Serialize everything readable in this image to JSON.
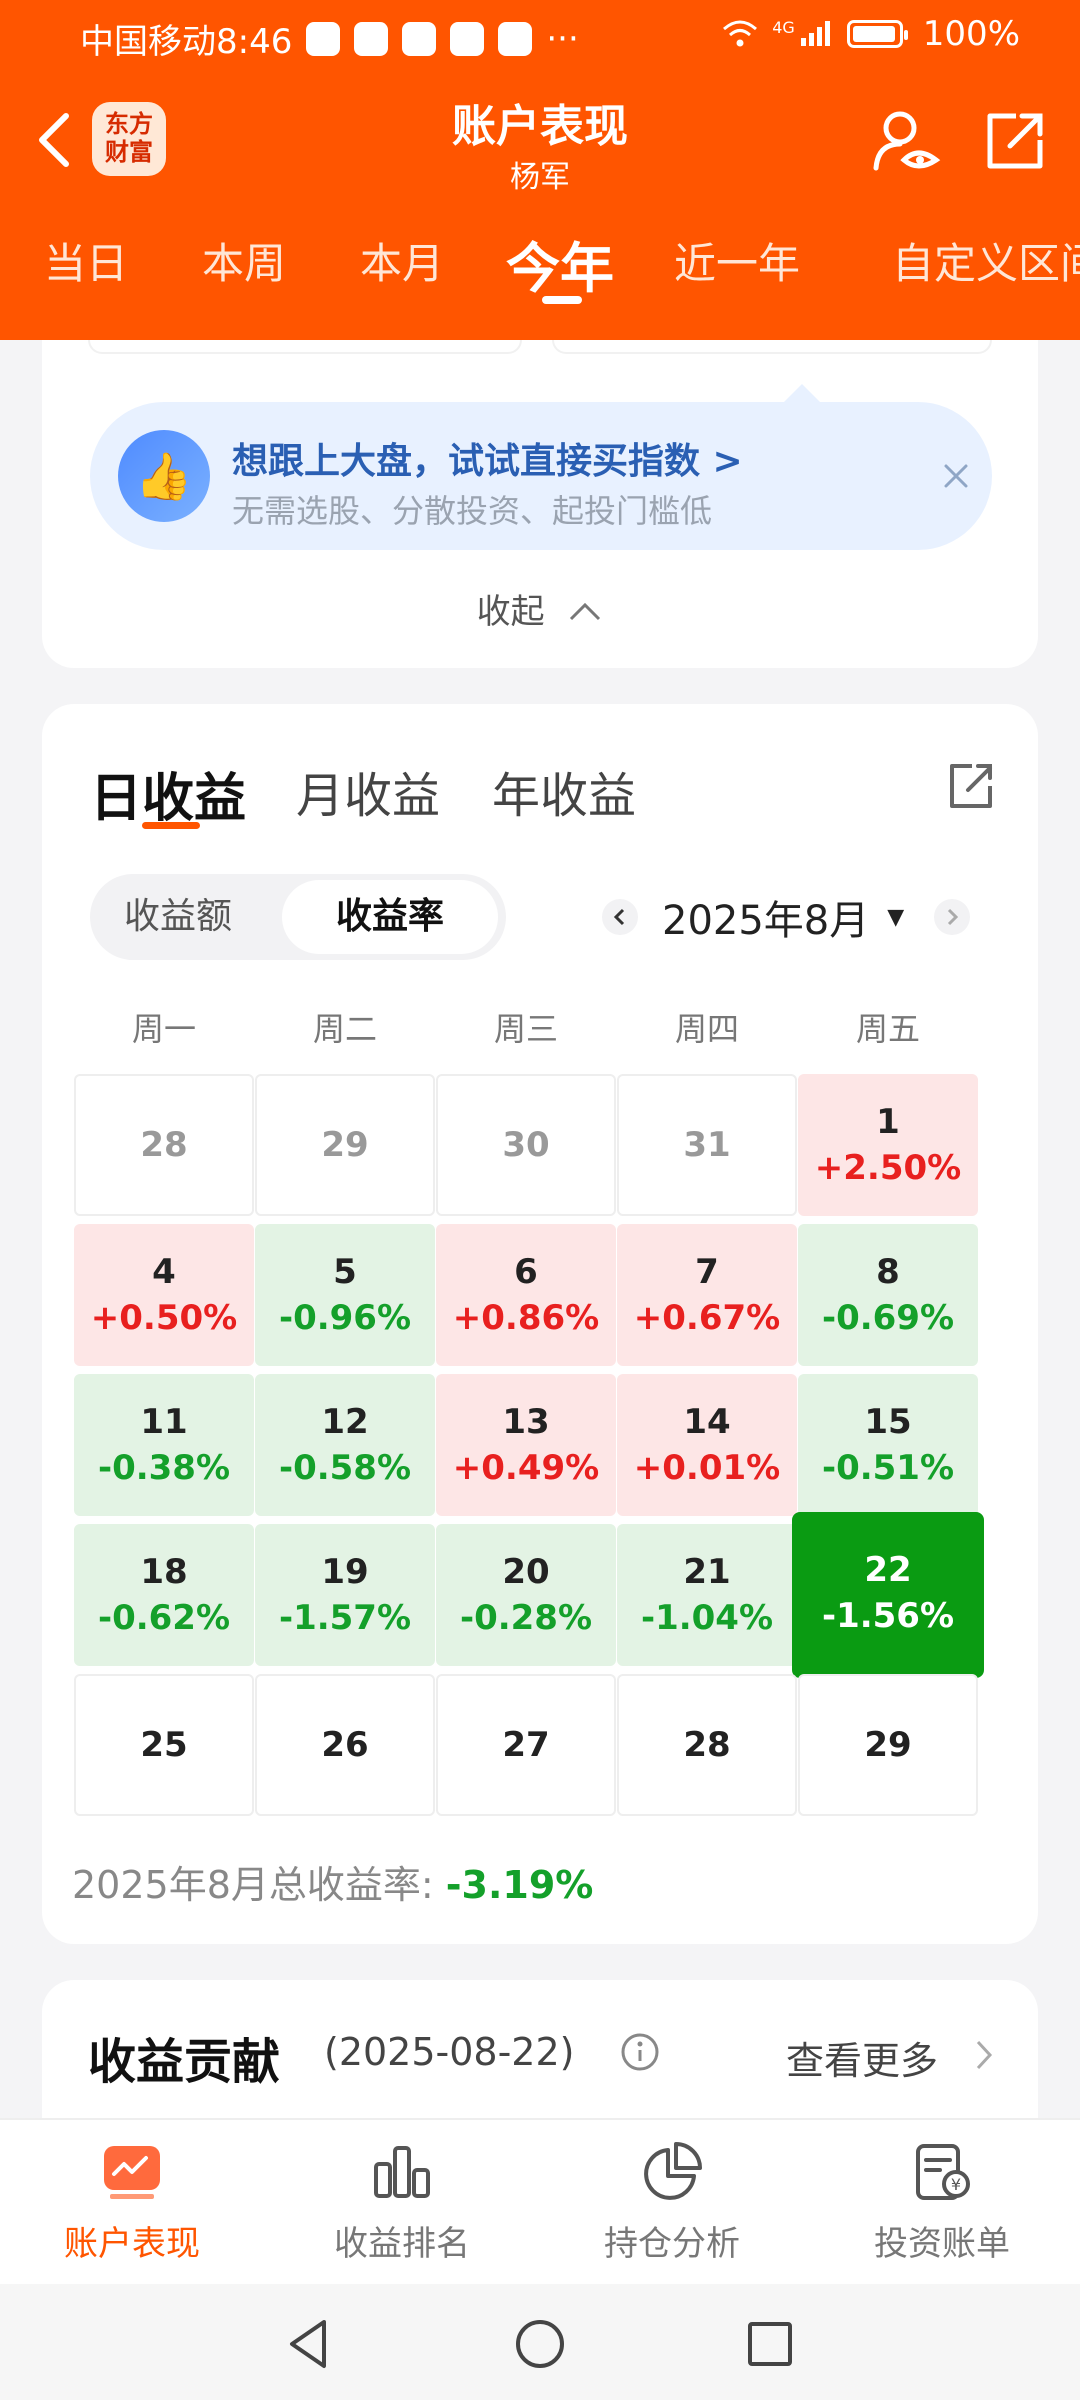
{
  "status": {
    "carrier_time": "中国移动8:46",
    "more": "···",
    "net": "4G",
    "battery": "100%"
  },
  "header": {
    "logo": "东方\n财富",
    "title": "账户表现",
    "subtitle": "杨军"
  },
  "period_tabs": [
    "当日",
    "本周",
    "本月",
    "今年",
    "近一年",
    "自定义区间"
  ],
  "promo": {
    "title": "想跟上大盘，试试直接买指数 >",
    "subtitle": "无需选股、分散投资、起投门槛低",
    "collapse": "收起"
  },
  "calendar_card": {
    "tabs": [
      "日收益",
      "月收益",
      "年收益"
    ],
    "segment": [
      "收益额",
      "收益率"
    ],
    "month": "2025年8月",
    "weekdays": [
      "周一",
      "周二",
      "周三",
      "周四",
      "周五"
    ],
    "cells": [
      {
        "day": "28",
        "value": "",
        "tone": "grey"
      },
      {
        "day": "29",
        "value": "",
        "tone": "grey"
      },
      {
        "day": "30",
        "value": "",
        "tone": "grey"
      },
      {
        "day": "31",
        "value": "",
        "tone": "grey"
      },
      {
        "day": "1",
        "value": "+2.50%",
        "tone": "red"
      },
      {
        "day": "4",
        "value": "+0.50%",
        "tone": "red"
      },
      {
        "day": "5",
        "value": "-0.96%",
        "tone": "green"
      },
      {
        "day": "6",
        "value": "+0.86%",
        "tone": "red"
      },
      {
        "day": "7",
        "value": "+0.67%",
        "tone": "red"
      },
      {
        "day": "8",
        "value": "-0.69%",
        "tone": "green"
      },
      {
        "day": "11",
        "value": "-0.38%",
        "tone": "green"
      },
      {
        "day": "12",
        "value": "-0.58%",
        "tone": "green"
      },
      {
        "day": "13",
        "value": "+0.49%",
        "tone": "red"
      },
      {
        "day": "14",
        "value": "+0.01%",
        "tone": "red"
      },
      {
        "day": "15",
        "value": "-0.51%",
        "tone": "green"
      },
      {
        "day": "18",
        "value": "-0.62%",
        "tone": "green"
      },
      {
        "day": "19",
        "value": "-1.57%",
        "tone": "green"
      },
      {
        "day": "20",
        "value": "-0.28%",
        "tone": "green"
      },
      {
        "day": "21",
        "value": "-1.04%",
        "tone": "green"
      },
      {
        "day": "22",
        "value": "-1.56%",
        "tone": "selected"
      },
      {
        "day": "25",
        "value": "",
        "tone": "plain"
      },
      {
        "day": "26",
        "value": "",
        "tone": "plain"
      },
      {
        "day": "27",
        "value": "",
        "tone": "plain"
      },
      {
        "day": "28",
        "value": "",
        "tone": "plain"
      },
      {
        "day": "29",
        "value": "",
        "tone": "plain"
      }
    ],
    "summary_label": "2025年8月总收益率: ",
    "summary_value": "-3.19%"
  },
  "contribution": {
    "title": "收益贡献",
    "date": "(2025-08-22)",
    "more": "查看更多"
  },
  "bottom_nav": [
    "账户表现",
    "收益排名",
    "持仓分析",
    "投资账单"
  ],
  "colors": {
    "brand": "#ff5500",
    "up": "#e8201f",
    "down": "#14a02a",
    "selected": "#0a9b12"
  }
}
